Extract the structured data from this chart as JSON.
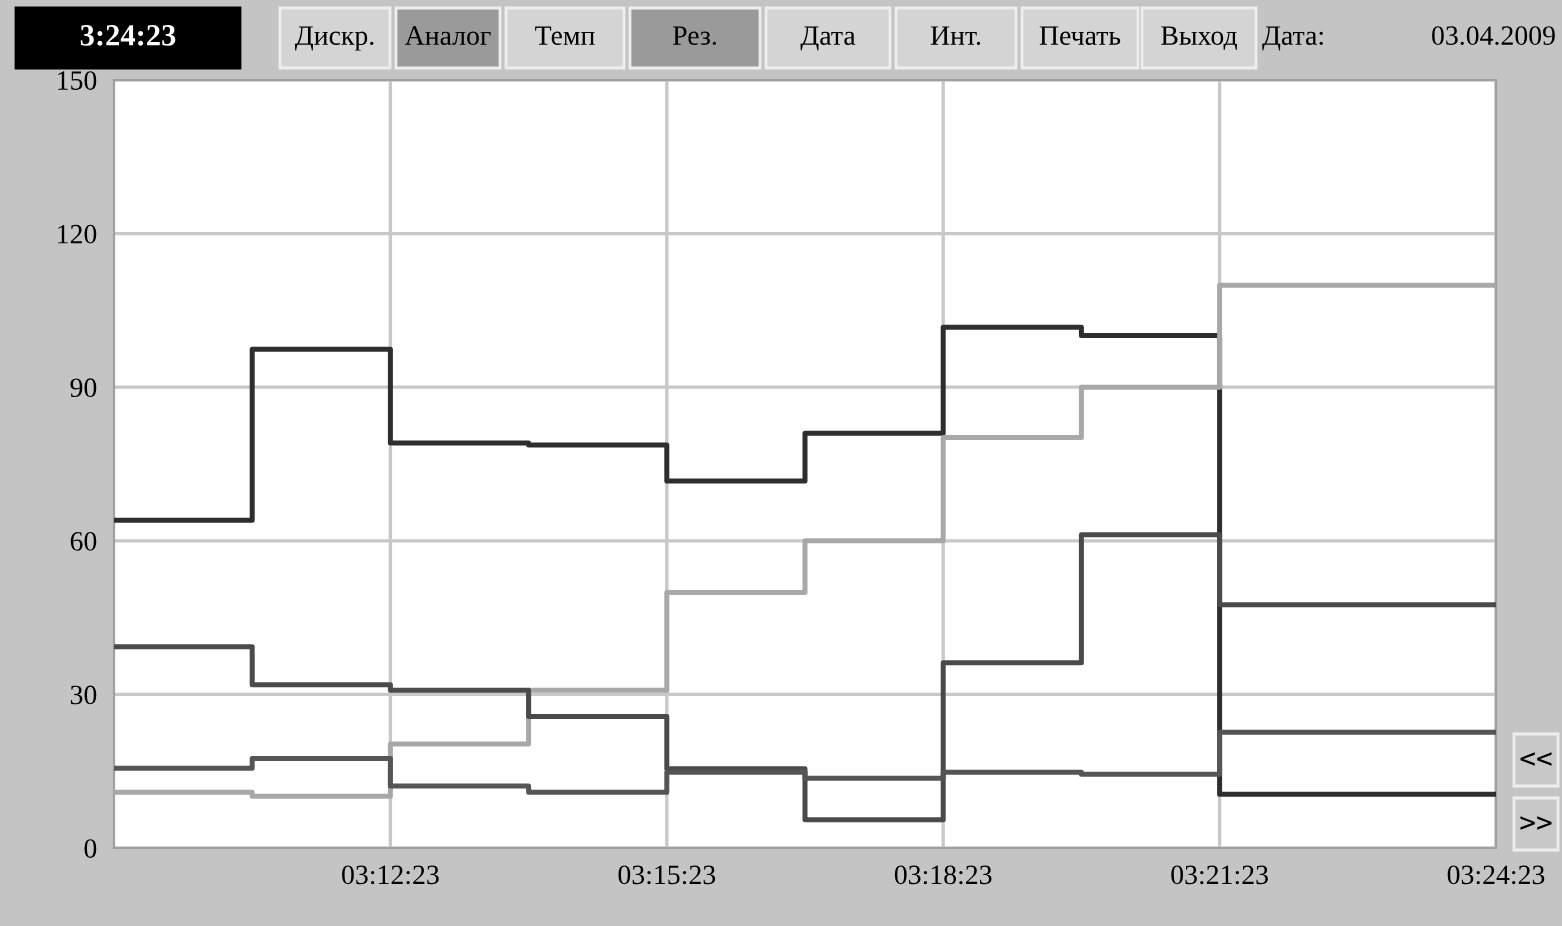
{
  "chart_data": {
    "type": "step",
    "x": [
      3.15639,
      3.18139,
      3.20639,
      3.23139,
      3.25639,
      3.28139,
      3.30639,
      3.33139,
      3.35639,
      3.40639
    ],
    "series": [
      {
        "color": "#2e2e2e",
        "values": [
          64,
          97.4,
          79.1,
          78.7,
          71.7,
          81.0,
          101.7,
          100.1,
          10.5,
          10.5
        ]
      },
      {
        "color": "#a8a8a8",
        "values": [
          10.9,
          10.1,
          20.3,
          30.8,
          49.9,
          60.0,
          80.2,
          90.0,
          109.9,
          109.9
        ]
      },
      {
        "color": "#4a4a4a",
        "values": [
          39.3,
          31.9,
          30.8,
          25.7,
          15.5,
          5.5,
          36.2,
          61.2,
          47.5,
          47.5
        ]
      },
      {
        "color": "#555555",
        "values": [
          15.6,
          17.5,
          12.1,
          10.9,
          14.8,
          13.6,
          14.8,
          14.4,
          22.6,
          22.6
        ]
      }
    ],
    "xlim": [
      3.15639,
      3.40639
    ],
    "xticks": [
      {
        "value": 3.20639,
        "label": "03:12:23"
      },
      {
        "value": 3.25639,
        "label": "03:15:23"
      },
      {
        "value": 3.30639,
        "label": "03:18:23"
      },
      {
        "value": 3.35639,
        "label": "03:21:23"
      },
      {
        "value": 3.40639,
        "label": "03:24:23"
      }
    ],
    "ylim": [
      0,
      150
    ],
    "yticks": [
      0,
      30,
      60,
      90,
      120,
      150
    ],
    "grid": true,
    "line_style": "solid",
    "marker": "none",
    "annotations": [
      "3:24:23",
      "Дискр.",
      "Аналог",
      "Темп",
      "Рез.",
      "Дата",
      "Инт.",
      "Печать",
      "Выход",
      "Дата:",
      "03.04.2009",
      "<<",
      ">>"
    ]
  }
}
